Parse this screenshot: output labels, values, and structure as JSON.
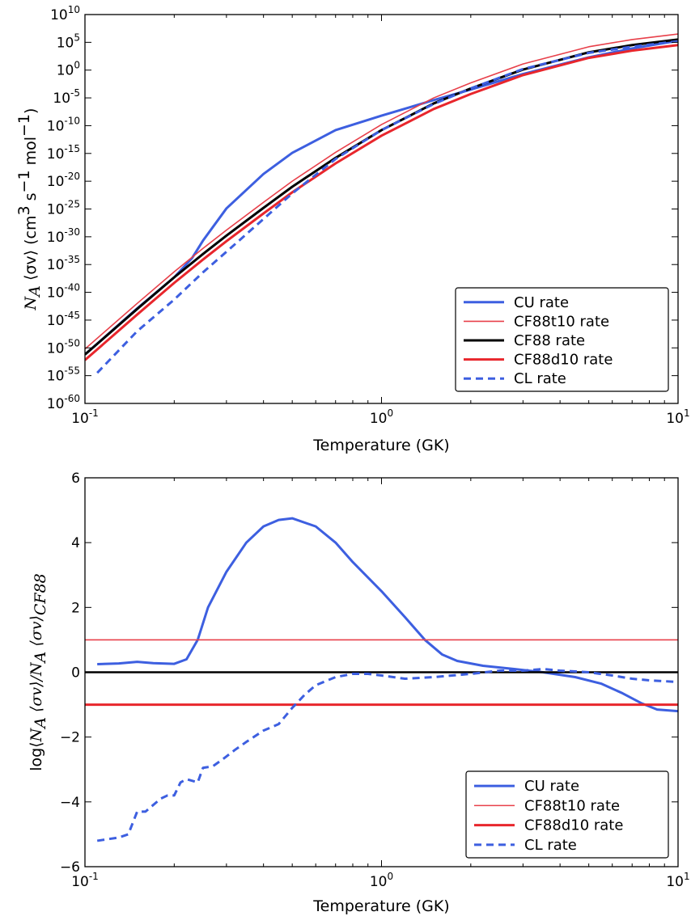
{
  "chart_data": [
    {
      "type": "line",
      "xlabel": "Temperature (GK)",
      "ylabel": {
        "parts": [
          {
            "t": "N",
            "c": "ylab"
          },
          {
            "t": "A",
            "c": "ylab",
            "sub": true
          },
          {
            "t": " ⟨σv⟩ (cm",
            "c": "ylab-up"
          },
          {
            "t": "3",
            "c": "ylab-up",
            "sup": true
          },
          {
            "t": " s",
            "c": "ylab-up"
          },
          {
            "t": "−1",
            "c": "ylab-up",
            "sup": true
          },
          {
            "t": " mol",
            "c": "ylab-up"
          },
          {
            "t": "−1",
            "c": "ylab-up",
            "sup": true
          },
          {
            "t": ")",
            "c": "ylab-up"
          }
        ]
      },
      "x_scale": "log",
      "y_scale": "log",
      "xlim": [
        0.1,
        10
      ],
      "ylim_exp": [
        -60,
        10
      ],
      "x_ticks": [
        {
          "value": 0.1,
          "base": "10",
          "exp": "-1"
        },
        {
          "value": 1,
          "base": "10",
          "exp": "0"
        },
        {
          "value": 10,
          "base": "10",
          "exp": "1"
        }
      ],
      "y_ticks": [
        {
          "value": 10,
          "base": "10",
          "exp": "10"
        },
        {
          "value": 5,
          "base": "10",
          "exp": "5"
        },
        {
          "value": 0,
          "base": "10",
          "exp": "0"
        },
        {
          "value": -5,
          "base": "10",
          "exp": "-5"
        },
        {
          "value": -10,
          "base": "10",
          "exp": "-10"
        },
        {
          "value": -15,
          "base": "10",
          "exp": "-15"
        },
        {
          "value": -20,
          "base": "10",
          "exp": "-20"
        },
        {
          "value": -25,
          "base": "10",
          "exp": "-25"
        },
        {
          "value": -30,
          "base": "10",
          "exp": "-30"
        },
        {
          "value": -35,
          "base": "10",
          "exp": "-35"
        },
        {
          "value": -40,
          "base": "10",
          "exp": "-40"
        },
        {
          "value": -45,
          "base": "10",
          "exp": "-45"
        },
        {
          "value": -50,
          "base": "10",
          "exp": "-50"
        },
        {
          "value": -55,
          "base": "10",
          "exp": "-55"
        },
        {
          "value": -60,
          "base": "10",
          "exp": "-60"
        }
      ],
      "legend": "lower-right",
      "series": [
        {
          "name": "CU rate",
          "color": "#3d5fe0",
          "width": 3,
          "dash": "",
          "x": [
            0.1,
            0.15,
            0.2,
            0.23,
            0.25,
            0.3,
            0.4,
            0.5,
            0.7,
            1.0,
            1.5,
            2,
            3,
            5,
            7,
            10
          ],
          "y_exp": [
            -51.2,
            -42.9,
            -37.3,
            -33.8,
            -30.7,
            -24.9,
            -18.7,
            -14.9,
            -10.8,
            -8.2,
            -5.4,
            -3.5,
            -0.7,
            2.3,
            3.9,
            5.3
          ]
        },
        {
          "name": "CF88t10 rate",
          "color": "#e8404a",
          "width": 1.6,
          "dash": "",
          "x": [
            0.1,
            0.15,
            0.2,
            0.25,
            0.3,
            0.4,
            0.5,
            0.7,
            1.0,
            1.5,
            2,
            3,
            5,
            7,
            10
          ],
          "y_exp": [
            -50.2,
            -42.0,
            -36.3,
            -32.1,
            -28.8,
            -23.8,
            -20.0,
            -14.8,
            -9.8,
            -5.0,
            -2.3,
            1.1,
            4.2,
            5.5,
            6.5
          ]
        },
        {
          "name": "CF88 rate",
          "color": "#000000",
          "width": 3,
          "dash": "",
          "x": [
            0.1,
            0.15,
            0.2,
            0.25,
            0.3,
            0.4,
            0.5,
            0.7,
            1.0,
            1.5,
            2,
            3,
            5,
            7,
            10
          ],
          "y_exp": [
            -51.2,
            -43.0,
            -37.3,
            -33.1,
            -29.8,
            -24.8,
            -21.0,
            -15.8,
            -10.8,
            -6.0,
            -3.3,
            0.1,
            3.2,
            4.5,
            5.5
          ]
        },
        {
          "name": "CF88d10 rate",
          "color": "#e8262c",
          "width": 3,
          "dash": "",
          "x": [
            0.1,
            0.15,
            0.2,
            0.25,
            0.3,
            0.4,
            0.5,
            0.7,
            1.0,
            1.5,
            2,
            3,
            5,
            7,
            10
          ],
          "y_exp": [
            -52.2,
            -44.0,
            -38.3,
            -34.1,
            -30.8,
            -25.8,
            -22.0,
            -16.8,
            -11.8,
            -7.0,
            -4.3,
            -0.9,
            2.2,
            3.5,
            4.5
          ]
        },
        {
          "name": "CL rate",
          "color": "#3d5fe0",
          "width": 3,
          "dash": "9,6",
          "x": [
            0.11,
            0.15,
            0.2,
            0.25,
            0.3,
            0.4,
            0.5,
            0.7,
            1.0,
            1.5,
            2,
            3,
            5,
            7,
            10
          ],
          "y_exp": [
            -54.5,
            -47.0,
            -41.3,
            -36.4,
            -32.7,
            -26.8,
            -22.2,
            -16.0,
            -10.8,
            -6.1,
            -3.3,
            0.2,
            3.1,
            4.2,
            5.2
          ]
        }
      ]
    },
    {
      "type": "line",
      "xlabel": "Temperature (GK)",
      "ylabel": {
        "parts": [
          {
            "t": "log⟨",
            "c": "ylab-up"
          },
          {
            "t": "N",
            "c": "ylab"
          },
          {
            "t": "A",
            "c": "ylab",
            "sub": true
          },
          {
            "t": " ⟨σv⟩/",
            "c": "ylab"
          },
          {
            "t": "N",
            "c": "ylab"
          },
          {
            "t": "A",
            "c": "ylab",
            "sub": true
          },
          {
            "t": " ⟨σv⟩",
            "c": "ylab"
          },
          {
            "t": "CF88",
            "c": "ylab",
            "sub": true
          }
        ]
      },
      "x_scale": "log",
      "y_scale": "linear",
      "xlim": [
        0.1,
        10
      ],
      "ylim": [
        -6,
        6
      ],
      "x_ticks": [
        {
          "value": 0.1,
          "base": "10",
          "exp": "-1"
        },
        {
          "value": 1,
          "base": "10",
          "exp": "0"
        },
        {
          "value": 10,
          "base": "10",
          "exp": "1"
        }
      ],
      "y_ticks": [
        {
          "value": 6,
          "label": "6"
        },
        {
          "value": 4,
          "label": "4"
        },
        {
          "value": 2,
          "label": "2"
        },
        {
          "value": 0,
          "label": "0"
        },
        {
          "value": -2,
          "label": "−2"
        },
        {
          "value": -4,
          "label": "−4"
        },
        {
          "value": -6,
          "label": "−6"
        }
      ],
      "legend": "lower-right",
      "series": [
        {
          "name": "CU rate",
          "color": "#3d5fe0",
          "width": 3,
          "dash": "",
          "x": [
            0.11,
            0.13,
            0.15,
            0.17,
            0.2,
            0.22,
            0.24,
            0.26,
            0.3,
            0.35,
            0.4,
            0.45,
            0.5,
            0.6,
            0.7,
            0.8,
            1.0,
            1.2,
            1.4,
            1.6,
            1.8,
            2.2,
            2.8,
            3.5,
            4.5,
            5.5,
            6.5,
            7.5,
            8.5,
            10
          ],
          "y": [
            0.25,
            0.27,
            0.32,
            0.28,
            0.26,
            0.4,
            1.0,
            2.0,
            3.1,
            4.0,
            4.5,
            4.7,
            4.75,
            4.5,
            4.0,
            3.4,
            2.5,
            1.7,
            1.0,
            0.55,
            0.35,
            0.2,
            0.1,
            0.0,
            -0.15,
            -0.35,
            -0.65,
            -0.95,
            -1.15,
            -1.2
          ]
        },
        {
          "name": "CF88t10 rate",
          "color": "#e8404a",
          "width": 1.6,
          "dash": "",
          "x": [
            0.1,
            10
          ],
          "y": [
            1,
            1
          ]
        },
        {
          "name": "",
          "color": "#000000",
          "width": 2.5,
          "dash": "",
          "x": [
            0.1,
            10
          ],
          "y": [
            0,
            0
          ]
        },
        {
          "name": "CF88d10 rate",
          "color": "#e8262c",
          "width": 3,
          "dash": "",
          "x": [
            0.1,
            10
          ],
          "y": [
            -1,
            -1
          ]
        },
        {
          "name": "CL rate",
          "color": "#3d5fe0",
          "width": 3,
          "dash": "9,6",
          "x": [
            0.11,
            0.13,
            0.14,
            0.15,
            0.16,
            0.18,
            0.19,
            0.2,
            0.21,
            0.22,
            0.24,
            0.25,
            0.27,
            0.29,
            0.32,
            0.35,
            0.4,
            0.45,
            0.5,
            0.55,
            0.6,
            0.7,
            0.8,
            0.9,
            1.0,
            1.2,
            1.5,
            2.0,
            2.5,
            3.0,
            3.5,
            4.0,
            5.0,
            6.0,
            7.0,
            8.0,
            10
          ],
          "y": [
            -5.2,
            -5.1,
            -5.0,
            -4.3,
            -4.3,
            -3.9,
            -3.8,
            -3.8,
            -3.4,
            -3.3,
            -3.4,
            -2.95,
            -2.9,
            -2.7,
            -2.4,
            -2.15,
            -1.8,
            -1.6,
            -1.1,
            -0.7,
            -0.4,
            -0.15,
            -0.05,
            -0.05,
            -0.1,
            -0.2,
            -0.15,
            -0.05,
            0.05,
            0.05,
            0.1,
            0.05,
            0.0,
            -0.1,
            -0.2,
            -0.25,
            -0.3
          ]
        }
      ]
    }
  ]
}
